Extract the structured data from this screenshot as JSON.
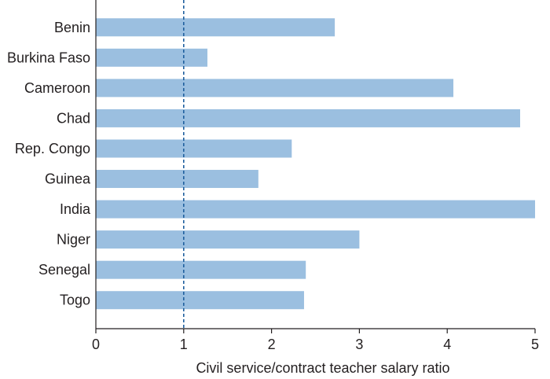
{
  "chart_data": {
    "type": "bar",
    "orientation": "horizontal",
    "categories": [
      "Benin",
      "Burkina Faso",
      "Cameroon",
      "Chad",
      "Rep. Congo",
      "Guinea",
      "India",
      "Niger",
      "Senegal",
      "Togo"
    ],
    "values": [
      2.72,
      1.27,
      4.07,
      4.83,
      2.23,
      1.85,
      5.0,
      3.0,
      2.39,
      2.37
    ],
    "xlabel": "Civil service/contract teacher salary ratio",
    "xlim": [
      0,
      5
    ],
    "xticks": [
      "0",
      "1",
      "2",
      "3",
      "4",
      "5"
    ],
    "reference_line": {
      "x": 1,
      "style": "dashed"
    },
    "grid": false,
    "colors": {
      "bar": "#9bbfe0",
      "reference_line": "#1f5f9e",
      "axis": "#231f20"
    }
  }
}
